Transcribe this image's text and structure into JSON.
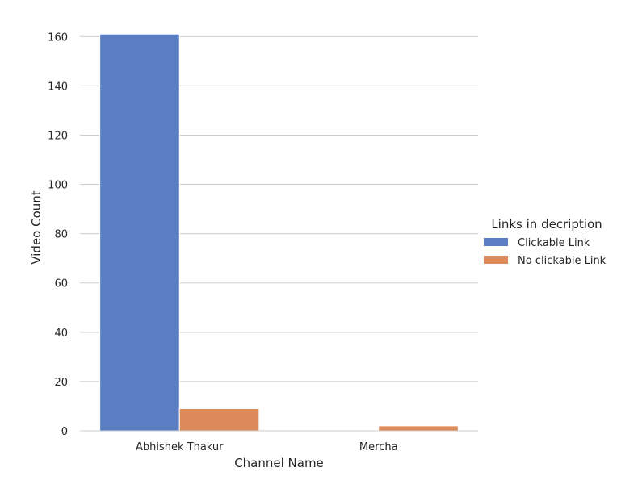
{
  "chart_data": {
    "type": "bar",
    "categories": [
      "Abhishek Thakur",
      "Mercha"
    ],
    "series": [
      {
        "name": "Clickable Link",
        "values": [
          161,
          0
        ],
        "color": "#5b7ec2"
      },
      {
        "name": "No clickable Link",
        "values": [
          9,
          2
        ],
        "color": "#dc8a5a"
      }
    ],
    "xlabel": "Channel Name",
    "ylabel": "Video Count",
    "ylim": [
      0,
      165
    ],
    "yticks": [
      0,
      20,
      40,
      60,
      80,
      100,
      120,
      140,
      160
    ],
    "grid": true,
    "legend": {
      "title": "Links in decription",
      "placement": "right"
    }
  }
}
